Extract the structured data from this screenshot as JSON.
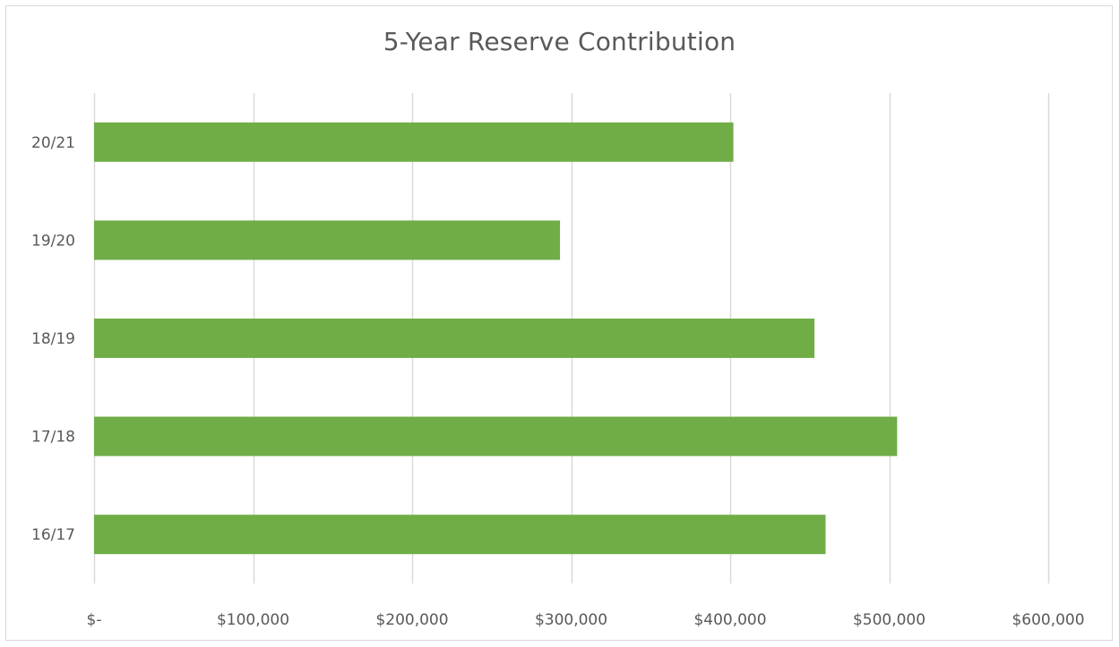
{
  "chart_data": {
    "type": "bar",
    "orientation": "horizontal",
    "title": "5-Year Reserve Contribution",
    "xlabel": "",
    "ylabel": "",
    "categories": [
      "16/17",
      "17/18",
      "18/19",
      "19/20",
      "20/21"
    ],
    "values": [
      460000,
      505000,
      453000,
      293000,
      402000
    ],
    "xlim": [
      0,
      600000
    ],
    "x_ticks": [
      0,
      100000,
      200000,
      300000,
      400000,
      500000,
      600000
    ],
    "x_tick_labels": [
      "$-",
      "$100,000",
      "$200,000",
      "$300,000",
      "$400,000",
      "$500,000",
      "$600,000"
    ],
    "grid": "vertical",
    "legend": "none",
    "bar_color": "#70ad47",
    "grid_color": "#d9d9d9"
  }
}
